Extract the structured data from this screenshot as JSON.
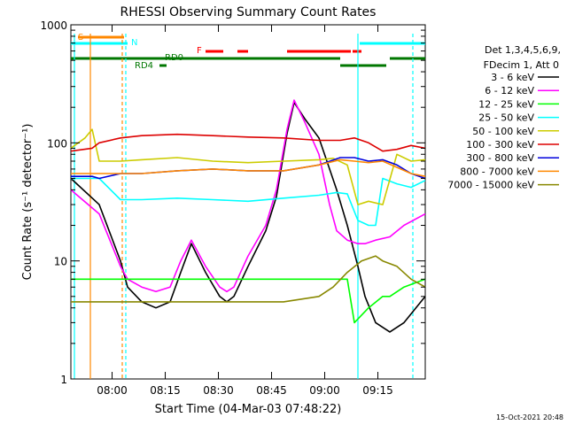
{
  "chart_data": {
    "type": "line",
    "title": "RHESSI Observing Summary Count Rates",
    "xlabel": "Start Time (04-Mar-03 07:48:22)",
    "ylabel": "Count Rate (s⁻¹ detector⁻¹)",
    "y_scale": "log",
    "ylim": [
      1,
      1000
    ],
    "xlim_minutes_after_start": [
      0,
      100
    ],
    "x_ticks": [
      "08:00",
      "08:15",
      "08:30",
      "08:45",
      "09:00",
      "09:15"
    ],
    "y_ticks": [
      "1",
      "10",
      "100",
      "1000"
    ],
    "legend_header": [
      "Det 1,3,4,5,6,9,",
      "FDecim 1, Att 0"
    ],
    "legend_position": "right",
    "timestamp": "15-Oct-2021 20:48",
    "series": [
      {
        "name": "3 - 6 keV",
        "color": "#000000",
        "x": [
          0,
          8,
          14,
          16,
          20,
          24,
          28,
          31,
          34,
          38,
          42,
          44,
          46,
          50,
          55,
          58,
          61,
          63,
          66,
          70,
          73,
          75,
          78,
          81,
          83,
          86,
          90,
          94,
          100
        ],
        "values": [
          50,
          30,
          10,
          6,
          4.5,
          4,
          4.5,
          8,
          14,
          8,
          5,
          4.5,
          5,
          9,
          18,
          35,
          120,
          220,
          160,
          110,
          60,
          40,
          20,
          9,
          5,
          3,
          2.5,
          3,
          5
        ]
      },
      {
        "name": "6 - 12 keV",
        "color": "#ff00ff",
        "x": [
          0,
          8,
          14,
          16,
          20,
          24,
          28,
          31,
          34,
          38,
          42,
          44,
          46,
          50,
          55,
          58,
          61,
          63,
          66,
          70,
          73,
          75,
          78,
          81,
          83,
          86,
          90,
          94,
          100
        ],
        "values": [
          40,
          25,
          9,
          7,
          6,
          5.5,
          6,
          10,
          15,
          9,
          6,
          5.5,
          6,
          11,
          20,
          40,
          130,
          230,
          150,
          80,
          30,
          18,
          15,
          14,
          14,
          15,
          16,
          20,
          25
        ]
      },
      {
        "name": "12 - 25 keV",
        "color": "#00ff00",
        "x": [
          0,
          6,
          8,
          14,
          20,
          30,
          40,
          50,
          60,
          70,
          75,
          78,
          80,
          84,
          88,
          90,
          94,
          100
        ],
        "values": [
          7,
          7,
          7,
          7,
          7,
          7,
          7,
          7,
          7,
          7,
          7,
          7,
          3,
          4,
          5,
          5,
          6,
          7
        ]
      },
      {
        "name": "25 - 50 keV",
        "color": "#00ffff",
        "x": [
          0,
          5,
          8,
          14,
          20,
          30,
          40,
          50,
          60,
          70,
          75,
          78,
          81,
          84,
          86,
          88,
          92,
          96,
          100
        ],
        "values": [
          50,
          50,
          50,
          33,
          33,
          34,
          33,
          32,
          34,
          36,
          38,
          37,
          22,
          20,
          20,
          50,
          45,
          42,
          48
        ]
      },
      {
        "name": "50 - 100 keV",
        "color": "#cccc00",
        "x": [
          0,
          4,
          6,
          8,
          14,
          20,
          30,
          40,
          50,
          60,
          70,
          74,
          78,
          81,
          84,
          88,
          92,
          96,
          100
        ],
        "values": [
          90,
          110,
          130,
          70,
          70,
          72,
          75,
          70,
          68,
          70,
          72,
          74,
          65,
          30,
          32,
          30,
          80,
          70,
          72
        ]
      },
      {
        "name": "100 - 300 keV",
        "color": "#dd0000",
        "x": [
          0,
          6,
          8,
          14,
          20,
          30,
          40,
          50,
          60,
          70,
          76,
          80,
          84,
          88,
          92,
          96,
          100
        ],
        "values": [
          85,
          90,
          100,
          110,
          115,
          118,
          115,
          112,
          110,
          105,
          105,
          110,
          100,
          85,
          88,
          95,
          90
        ]
      },
      {
        "name": "300 - 800 keV",
        "color": "#0000dd",
        "x": [
          0,
          6,
          8,
          14,
          20,
          30,
          40,
          50,
          60,
          70,
          76,
          80,
          84,
          88,
          92,
          96,
          100
        ],
        "values": [
          52,
          52,
          50,
          55,
          55,
          58,
          60,
          58,
          58,
          65,
          75,
          75,
          70,
          72,
          65,
          55,
          50
        ]
      },
      {
        "name": "800 - 7000 keV",
        "color": "#ff8800",
        "x": [
          0,
          6,
          8,
          14,
          20,
          30,
          40,
          50,
          60,
          70,
          76,
          80,
          84,
          88,
          92,
          96,
          100
        ],
        "values": [
          55,
          55,
          55,
          55,
          55,
          58,
          60,
          58,
          58,
          65,
          72,
          70,
          68,
          70,
          62,
          55,
          52
        ]
      },
      {
        "name": "7000 - 15000 keV",
        "color": "#888800",
        "x": [
          0,
          6,
          8,
          14,
          20,
          30,
          40,
          50,
          60,
          70,
          74,
          78,
          82,
          86,
          88,
          92,
          96,
          100
        ],
        "values": [
          4.5,
          4.5,
          4.5,
          4.5,
          4.5,
          4.5,
          4.5,
          4.5,
          4.5,
          5,
          6,
          8,
          10,
          11,
          10,
          9,
          7,
          6
        ]
      }
    ],
    "flag_bars": [
      {
        "label": "S",
        "color": "#ff8800"
      },
      {
        "label": "N",
        "color": "#00ffff"
      },
      {
        "label": "F",
        "color": "#ff0000"
      },
      {
        "label": "RD0",
        "color": "#007700"
      },
      {
        "label": "RD4",
        "color": "#007700"
      }
    ]
  }
}
